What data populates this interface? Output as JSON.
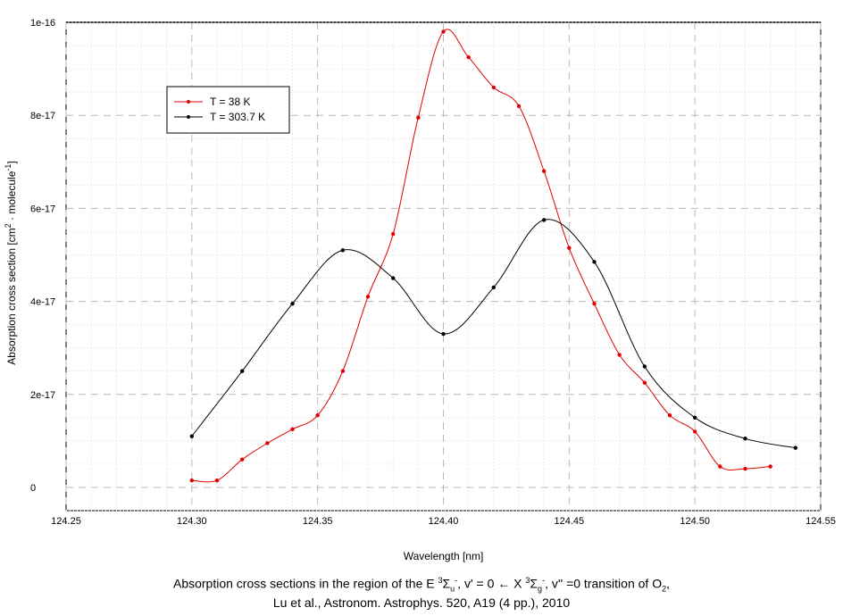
{
  "chart_data": {
    "type": "line",
    "xlabel": "Wavelength [nm]",
    "ylabel_parts": [
      "Absorption cross section [cm",
      "2",
      " · molecule",
      "-1",
      "]"
    ],
    "xlim": [
      124.25,
      124.55
    ],
    "ylim": [
      -5e-18,
      1e-16
    ],
    "xticks": [
      124.25,
      124.3,
      124.35,
      124.4,
      124.45,
      124.5,
      124.55
    ],
    "xtick_labels": [
      "124.25",
      "124.30",
      "124.35",
      "124.40",
      "124.45",
      "124.50",
      "124.55"
    ],
    "yticks": [
      0,
      2e-17,
      4e-17,
      6e-17,
      8e-17,
      1e-16
    ],
    "ytick_labels": [
      "0",
      "2e-17",
      "4e-17",
      "6e-17",
      "8e-17",
      "1e-16"
    ],
    "grid": true,
    "legend_position": "top-left",
    "series": [
      {
        "name": "T = 38 K",
        "color": "#e00000",
        "x": [
          124.3,
          124.31,
          124.32,
          124.33,
          124.34,
          124.35,
          124.36,
          124.37,
          124.38,
          124.39,
          124.4,
          124.41,
          124.42,
          124.43,
          124.44,
          124.45,
          124.46,
          124.47,
          124.48,
          124.49,
          124.5,
          124.51,
          124.52,
          124.53
        ],
        "y": [
          1.5e-18,
          1.5e-18,
          6e-18,
          9.5e-18,
          1.25e-17,
          1.55e-17,
          2.5e-17,
          4.1e-17,
          5.45e-17,
          7.95e-17,
          9.8e-17,
          9.25e-17,
          8.6e-17,
          8.2e-17,
          6.8e-17,
          5.15e-17,
          3.95e-17,
          2.85e-17,
          2.25e-17,
          1.55e-17,
          1.2e-17,
          4.5e-18,
          4e-18,
          4.5e-18
        ]
      },
      {
        "name": "T = 303.7 K",
        "color": "#000000",
        "x": [
          124.3,
          124.32,
          124.34,
          124.36,
          124.38,
          124.4,
          124.42,
          124.44,
          124.46,
          124.48,
          124.5,
          124.52,
          124.54
        ],
        "y": [
          1.1e-17,
          2.5e-17,
          3.95e-17,
          5.1e-17,
          4.5e-17,
          3.3e-17,
          4.3e-17,
          5.75e-17,
          4.85e-17,
          2.6e-17,
          1.5e-17,
          1.05e-17,
          8.5e-18
        ]
      }
    ]
  },
  "caption": {
    "line1_a": "Absorption cross sections in the region of the E ",
    "line1_b": "3",
    "line1_c": "Σ",
    "line1_d": "u",
    "line1_e": "-",
    "line1_f": ", v' = 0 ← X ",
    "line1_g": "3",
    "line1_h": "Σ",
    "line1_i": "g",
    "line1_j": "-",
    "line1_k": ", v'' =0 transition of O",
    "line1_l": "2",
    "line1_m": ",",
    "line2": "Lu et al., Astronom. Astrophys. 520, A19 (4 pp.), 2010"
  }
}
